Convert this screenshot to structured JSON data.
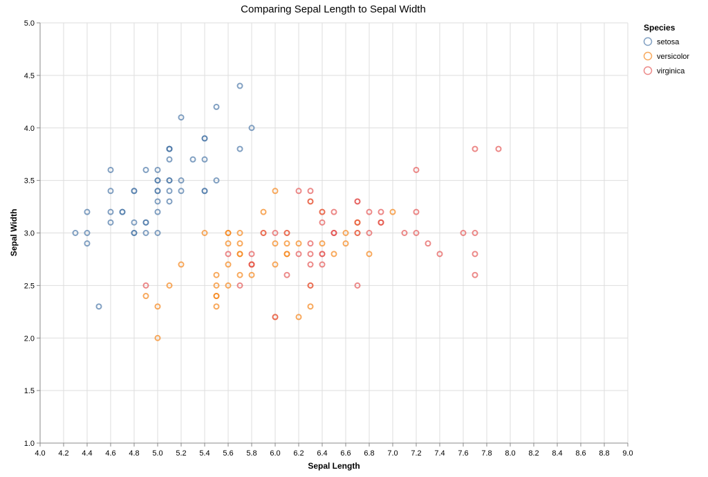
{
  "chart_data": {
    "type": "scatter",
    "title": "Comparing Sepal Length to Sepal Width",
    "xlabel": "Sepal Length",
    "ylabel": "Sepal Width",
    "xlim": [
      4.0,
      9.0
    ],
    "ylim": [
      1.0,
      5.0
    ],
    "xticks": [
      "4.0",
      "4.2",
      "4.4",
      "4.6",
      "4.8",
      "5.0",
      "5.2",
      "5.4",
      "5.6",
      "5.8",
      "6.0",
      "6.2",
      "6.4",
      "6.6",
      "6.8",
      "7.0",
      "7.2",
      "7.4",
      "7.6",
      "7.8",
      "8.0",
      "8.2",
      "8.4",
      "8.6",
      "8.8",
      "9.0"
    ],
    "yticks": [
      "1.0",
      "1.5",
      "2.0",
      "2.5",
      "3.0",
      "3.5",
      "4.0",
      "4.5",
      "5.0"
    ],
    "grid": true,
    "legend": {
      "title": "Species",
      "placement": "top-right"
    },
    "marker": "open-circle",
    "series": [
      {
        "name": "setosa",
        "color": "#4c78a8",
        "points": [
          [
            5.1,
            3.5
          ],
          [
            4.9,
            3.0
          ],
          [
            4.7,
            3.2
          ],
          [
            4.6,
            3.1
          ],
          [
            5.0,
            3.6
          ],
          [
            5.4,
            3.9
          ],
          [
            4.6,
            3.4
          ],
          [
            5.0,
            3.4
          ],
          [
            4.4,
            2.9
          ],
          [
            4.9,
            3.1
          ],
          [
            5.4,
            3.7
          ],
          [
            4.8,
            3.4
          ],
          [
            4.8,
            3.0
          ],
          [
            4.3,
            3.0
          ],
          [
            5.8,
            4.0
          ],
          [
            5.7,
            4.4
          ],
          [
            5.4,
            3.9
          ],
          [
            5.1,
            3.5
          ],
          [
            5.7,
            3.8
          ],
          [
            5.1,
            3.8
          ],
          [
            5.4,
            3.4
          ],
          [
            5.1,
            3.7
          ],
          [
            4.6,
            3.6
          ],
          [
            5.1,
            3.3
          ],
          [
            4.8,
            3.4
          ],
          [
            5.0,
            3.0
          ],
          [
            5.0,
            3.4
          ],
          [
            5.2,
            3.5
          ],
          [
            5.2,
            3.4
          ],
          [
            4.7,
            3.2
          ],
          [
            4.8,
            3.1
          ],
          [
            5.4,
            3.4
          ],
          [
            5.2,
            4.1
          ],
          [
            5.5,
            4.2
          ],
          [
            4.9,
            3.1
          ],
          [
            5.0,
            3.2
          ],
          [
            5.5,
            3.5
          ],
          [
            4.9,
            3.6
          ],
          [
            4.4,
            3.0
          ],
          [
            5.1,
            3.4
          ],
          [
            5.0,
            3.5
          ],
          [
            4.5,
            2.3
          ],
          [
            4.4,
            3.2
          ],
          [
            5.0,
            3.5
          ],
          [
            5.1,
            3.8
          ],
          [
            4.8,
            3.0
          ],
          [
            5.1,
            3.8
          ],
          [
            4.6,
            3.2
          ],
          [
            5.3,
            3.7
          ],
          [
            5.0,
            3.3
          ]
        ]
      },
      {
        "name": "versicolor",
        "color": "#f58518",
        "points": [
          [
            7.0,
            3.2
          ],
          [
            6.4,
            3.2
          ],
          [
            6.9,
            3.1
          ],
          [
            5.5,
            2.3
          ],
          [
            6.5,
            2.8
          ],
          [
            5.7,
            2.8
          ],
          [
            6.3,
            3.3
          ],
          [
            4.9,
            2.4
          ],
          [
            6.6,
            2.9
          ],
          [
            5.2,
            2.7
          ],
          [
            5.0,
            2.0
          ],
          [
            5.9,
            3.0
          ],
          [
            6.0,
            2.2
          ],
          [
            6.1,
            2.9
          ],
          [
            5.6,
            2.9
          ],
          [
            6.7,
            3.1
          ],
          [
            5.6,
            3.0
          ],
          [
            5.8,
            2.7
          ],
          [
            6.2,
            2.2
          ],
          [
            5.6,
            2.5
          ],
          [
            5.9,
            3.2
          ],
          [
            6.1,
            2.8
          ],
          [
            6.3,
            2.5
          ],
          [
            6.1,
            2.8
          ],
          [
            6.4,
            2.9
          ],
          [
            6.6,
            3.0
          ],
          [
            6.8,
            2.8
          ],
          [
            6.7,
            3.0
          ],
          [
            6.0,
            2.9
          ],
          [
            5.7,
            2.6
          ],
          [
            5.5,
            2.4
          ],
          [
            5.5,
            2.4
          ],
          [
            5.8,
            2.7
          ],
          [
            6.0,
            2.7
          ],
          [
            5.4,
            3.0
          ],
          [
            6.0,
            3.4
          ],
          [
            6.7,
            3.1
          ],
          [
            6.3,
            2.3
          ],
          [
            5.6,
            3.0
          ],
          [
            5.5,
            2.5
          ],
          [
            5.5,
            2.6
          ],
          [
            6.1,
            3.0
          ],
          [
            5.8,
            2.6
          ],
          [
            5.0,
            2.3
          ],
          [
            5.6,
            2.7
          ],
          [
            5.7,
            3.0
          ],
          [
            5.7,
            2.9
          ],
          [
            6.2,
            2.9
          ],
          [
            5.1,
            2.5
          ],
          [
            5.7,
            2.8
          ]
        ]
      },
      {
        "name": "virginica",
        "color": "#e45756",
        "points": [
          [
            6.3,
            3.3
          ],
          [
            5.8,
            2.7
          ],
          [
            7.1,
            3.0
          ],
          [
            6.3,
            2.9
          ],
          [
            6.5,
            3.0
          ],
          [
            7.6,
            3.0
          ],
          [
            4.9,
            2.5
          ],
          [
            7.3,
            2.9
          ],
          [
            6.7,
            2.5
          ],
          [
            7.2,
            3.6
          ],
          [
            6.5,
            3.2
          ],
          [
            6.4,
            2.7
          ],
          [
            6.8,
            3.0
          ],
          [
            5.7,
            2.5
          ],
          [
            5.8,
            2.8
          ],
          [
            6.4,
            3.2
          ],
          [
            6.5,
            3.0
          ],
          [
            7.7,
            3.8
          ],
          [
            7.7,
            2.6
          ],
          [
            6.0,
            2.2
          ],
          [
            6.9,
            3.2
          ],
          [
            5.6,
            2.8
          ],
          [
            7.7,
            2.8
          ],
          [
            6.3,
            2.7
          ],
          [
            6.7,
            3.3
          ],
          [
            7.2,
            3.2
          ],
          [
            6.2,
            2.8
          ],
          [
            6.1,
            3.0
          ],
          [
            6.4,
            2.8
          ],
          [
            7.2,
            3.0
          ],
          [
            7.4,
            2.8
          ],
          [
            7.9,
            3.8
          ],
          [
            6.4,
            2.8
          ],
          [
            6.3,
            2.8
          ],
          [
            6.1,
            2.6
          ],
          [
            7.7,
            3.0
          ],
          [
            6.3,
            3.4
          ],
          [
            6.4,
            3.1
          ],
          [
            6.0,
            3.0
          ],
          [
            6.9,
            3.1
          ],
          [
            6.7,
            3.1
          ],
          [
            6.9,
            3.1
          ],
          [
            5.8,
            2.7
          ],
          [
            6.8,
            3.2
          ],
          [
            6.7,
            3.3
          ],
          [
            6.7,
            3.0
          ],
          [
            6.3,
            2.5
          ],
          [
            6.5,
            3.0
          ],
          [
            6.2,
            3.4
          ],
          [
            5.9,
            3.0
          ]
        ]
      }
    ]
  }
}
